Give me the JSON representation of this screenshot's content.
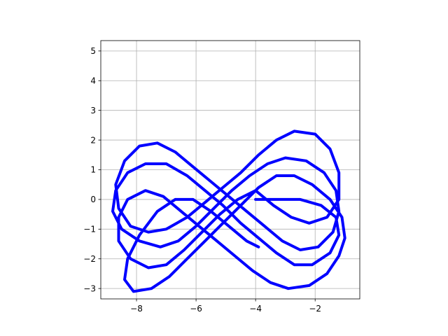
{
  "chart_data": {
    "type": "line",
    "title": "",
    "xlabel": "",
    "ylabel": "",
    "xlim": [
      -9.2,
      -0.5
    ],
    "ylim": [
      -3.35,
      5.35
    ],
    "grid": true,
    "x_ticks": [
      -8,
      -6,
      -4,
      -2
    ],
    "x_tick_labels": [
      "−8",
      "−6",
      "−4",
      "−2"
    ],
    "y_ticks": [
      -3,
      -2,
      -1,
      0,
      1,
      2,
      3,
      4,
      5
    ],
    "y_tick_labels": [
      "−3",
      "−2",
      "−1",
      "0",
      "1",
      "2",
      "3",
      "4",
      "5"
    ],
    "series": [
      {
        "color": "#0000ff",
        "line_width": 4,
        "description_points": "figure-eight loops repeated with a drift",
        "x": [
          -4.0,
          -3.6,
          -3.0,
          -2.5,
          -1.8,
          -1.3,
          -1.2,
          -1.5,
          -2.1,
          -2.7,
          -3.3,
          -3.9,
          -4.5,
          -5.1,
          -5.7,
          -6.3,
          -7.0,
          -7.7,
          -8.3,
          -8.7,
          -8.8,
          -8.5,
          -7.9,
          -7.2,
          -6.6,
          -6.0,
          -5.4,
          -4.8,
          -4.2,
          -3.6,
          -3.0,
          -2.3,
          -1.7,
          -1.3,
          -1.2,
          -1.4,
          -1.9,
          -2.5,
          -3.1,
          -3.7,
          -4.3,
          -4.9,
          -5.5,
          -6.1,
          -6.7,
          -7.3,
          -7.9,
          -8.4,
          -8.7,
          -8.6,
          -8.2,
          -7.6,
          -7.0,
          -6.3,
          -5.7,
          -5.1,
          -4.5,
          -3.9,
          -3.3,
          -2.7,
          -2.0,
          -1.5,
          -1.2,
          -1.2,
          -1.6,
          -2.2,
          -2.8,
          -3.4,
          -4.0,
          -4.6,
          -5.2,
          -5.8,
          -6.4,
          -7.0,
          -7.6,
          -8.2,
          -8.6,
          -8.6,
          -8.3,
          -7.7,
          -7.1,
          -6.5,
          -5.9,
          -5.3,
          -4.7,
          -4.1,
          -3.5,
          -2.9,
          -2.2,
          -1.6,
          -1.2,
          -1.0,
          -1.1,
          -1.5,
          -2.1,
          -2.7,
          -3.3,
          -3.9,
          -4.5,
          -5.1,
          -5.7,
          -6.3,
          -6.9,
          -7.5,
          -8.1,
          -8.4,
          -8.3,
          -7.9,
          -7.3,
          -6.7,
          -6.1,
          -5.5,
          -4.9,
          -4.3,
          -3.9
        ],
        "y": [
          0.0,
          0.0,
          0.0,
          0.0,
          -0.2,
          -0.6,
          -1.2,
          -1.8,
          -2.2,
          -2.2,
          -1.8,
          -1.3,
          -0.8,
          -0.2,
          0.3,
          0.8,
          1.2,
          1.2,
          0.9,
          0.3,
          -0.4,
          -1.0,
          -1.4,
          -1.6,
          -1.4,
          -0.9,
          -0.3,
          0.3,
          0.8,
          1.2,
          1.4,
          1.3,
          0.9,
          0.3,
          -0.4,
          -1.1,
          -1.6,
          -1.7,
          -1.4,
          -0.9,
          -0.4,
          0.1,
          0.6,
          1.1,
          1.6,
          1.9,
          1.8,
          1.3,
          0.5,
          -0.3,
          -0.9,
          -1.1,
          -1.0,
          -0.6,
          -0.1,
          0.4,
          0.9,
          1.5,
          2.0,
          2.3,
          2.2,
          1.7,
          0.9,
          0.0,
          -0.6,
          -0.8,
          -0.6,
          -0.2,
          0.3,
          0.0,
          -0.5,
          -1.1,
          -1.7,
          -2.2,
          -2.3,
          -2.0,
          -1.4,
          -0.6,
          0.0,
          0.3,
          0.1,
          -0.4,
          -0.9,
          -1.4,
          -1.9,
          -2.4,
          -2.8,
          -3.0,
          -2.9,
          -2.5,
          -1.9,
          -1.3,
          -0.6,
          0.0,
          0.5,
          0.8,
          0.8,
          0.4,
          -0.2,
          -0.8,
          -1.4,
          -2.0,
          -2.6,
          -3.0,
          -3.1,
          -2.7,
          -2.0,
          -1.2,
          -0.4,
          0.0,
          0.0,
          -0.4,
          -0.9,
          -1.4,
          -1.6
        ]
      }
    ]
  }
}
